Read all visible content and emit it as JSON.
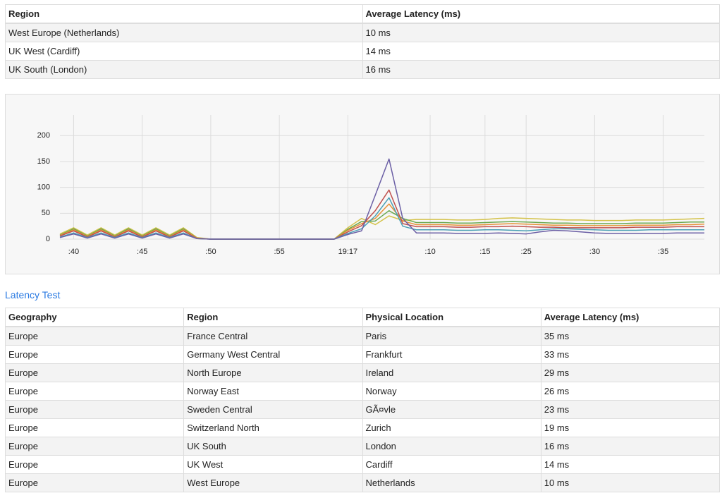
{
  "summary_table": {
    "header": [
      "Region",
      "Average Latency (ms)"
    ],
    "rows": [
      [
        "West Europe (Netherlands)",
        "10 ms"
      ],
      [
        "UK West (Cardiff)",
        "14 ms"
      ],
      [
        "UK South (London)",
        "16 ms"
      ]
    ]
  },
  "chart_data": {
    "type": "line",
    "x": [
      0,
      1,
      2,
      3,
      4,
      5,
      6,
      7,
      8,
      9,
      10,
      11,
      12,
      13,
      14,
      15,
      16,
      17,
      18,
      19,
      20,
      21,
      22,
      23,
      24,
      25,
      26,
      27,
      28,
      29,
      30,
      31,
      32,
      33,
      34,
      35,
      36,
      37,
      38,
      39,
      40,
      41,
      42,
      43,
      44,
      45,
      46,
      47
    ],
    "xlim": [
      0,
      47
    ],
    "xticks": [
      {
        "value": 1,
        "label": ":40"
      },
      {
        "value": 6,
        "label": ":45"
      },
      {
        "value": 11,
        "label": ":50"
      },
      {
        "value": 16,
        "label": ":55"
      },
      {
        "value": 21,
        "label": "19:17"
      },
      {
        "value": 27,
        "label": ":10"
      },
      {
        "value": 31,
        "label": ":15"
      },
      {
        "value": 34,
        "label": ":25"
      },
      {
        "value": 39,
        "label": ":30"
      },
      {
        "value": 44,
        "label": ":35"
      }
    ],
    "ylim": [
      0,
      240
    ],
    "yticks": [
      0,
      50,
      100,
      150,
      200
    ],
    "grid": true,
    "series": [
      {
        "color": "#d4c24a",
        "values": [
          10,
          22,
          8,
          22,
          8,
          22,
          8,
          22,
          8,
          22,
          3,
          0,
          0,
          0,
          0,
          0,
          0,
          0,
          0,
          0,
          0,
          22,
          40,
          28,
          45,
          36,
          38,
          38,
          38,
          37,
          37,
          38,
          40,
          41,
          40,
          39,
          38,
          37,
          37,
          36,
          36,
          36,
          37,
          37,
          37,
          38,
          39,
          40
        ]
      },
      {
        "color": "#6aa84f",
        "values": [
          8,
          20,
          6,
          20,
          6,
          20,
          6,
          20,
          6,
          20,
          2,
          0,
          0,
          0,
          0,
          0,
          0,
          0,
          0,
          0,
          0,
          19,
          34,
          35,
          55,
          40,
          32,
          32,
          32,
          31,
          31,
          32,
          33,
          34,
          33,
          32,
          31,
          31,
          30,
          30,
          30,
          30,
          31,
          31,
          31,
          32,
          33,
          33
        ]
      },
      {
        "color": "#e69138",
        "values": [
          7,
          18,
          5,
          18,
          5,
          18,
          5,
          18,
          5,
          18,
          2,
          0,
          0,
          0,
          0,
          0,
          0,
          0,
          0,
          0,
          0,
          17,
          30,
          40,
          68,
          35,
          28,
          28,
          28,
          27,
          27,
          28,
          29,
          30,
          29,
          28,
          27,
          27,
          26,
          26,
          26,
          26,
          27,
          27,
          27,
          28,
          28,
          29
        ]
      },
      {
        "color": "#c0504d",
        "values": [
          6,
          16,
          4,
          16,
          4,
          16,
          4,
          16,
          4,
          16,
          1,
          0,
          0,
          0,
          0,
          0,
          0,
          0,
          0,
          0,
          0,
          14,
          26,
          55,
          95,
          30,
          24,
          24,
          24,
          23,
          23,
          24,
          24,
          25,
          24,
          23,
          23,
          22,
          22,
          22,
          22,
          22,
          23,
          23,
          23,
          24,
          24,
          24
        ]
      },
      {
        "color": "#4a9fb5",
        "values": [
          4,
          12,
          3,
          12,
          3,
          12,
          3,
          12,
          3,
          12,
          1,
          0,
          0,
          0,
          0,
          0,
          0,
          0,
          0,
          0,
          0,
          11,
          20,
          45,
          80,
          25,
          18,
          18,
          18,
          17,
          17,
          18,
          18,
          17,
          16,
          18,
          20,
          20,
          19,
          18,
          17,
          17,
          17,
          18,
          18,
          18,
          18,
          18
        ]
      },
      {
        "color": "#6b5fa5",
        "values": [
          3,
          10,
          2,
          10,
          2,
          10,
          2,
          10,
          2,
          10,
          1,
          0,
          0,
          0,
          0,
          0,
          0,
          0,
          0,
          0,
          0,
          9,
          16,
          85,
          155,
          40,
          12,
          12,
          12,
          11,
          11,
          11,
          12,
          11,
          10,
          14,
          17,
          16,
          14,
          12,
          11,
          11,
          11,
          11,
          11,
          12,
          12,
          12
        ]
      }
    ]
  },
  "link": "Latency Test",
  "regions_table": {
    "header": [
      "Geography",
      "Region",
      "Physical Location",
      "Average Latency (ms)"
    ],
    "rows": [
      [
        "Europe",
        "France Central",
        "Paris",
        "35 ms"
      ],
      [
        "Europe",
        "Germany West Central",
        "Frankfurt",
        "33 ms"
      ],
      [
        "Europe",
        "North Europe",
        "Ireland",
        "29 ms"
      ],
      [
        "Europe",
        "Norway East",
        "Norway",
        "26 ms"
      ],
      [
        "Europe",
        "Sweden Central",
        "GÃ¤vle",
        "23 ms"
      ],
      [
        "Europe",
        "Switzerland North",
        "Zurich",
        "19 ms"
      ],
      [
        "Europe",
        "UK South",
        "London",
        "16 ms"
      ],
      [
        "Europe",
        "UK West",
        "Cardiff",
        "14 ms"
      ],
      [
        "Europe",
        "West Europe",
        "Netherlands",
        "10 ms"
      ]
    ]
  }
}
